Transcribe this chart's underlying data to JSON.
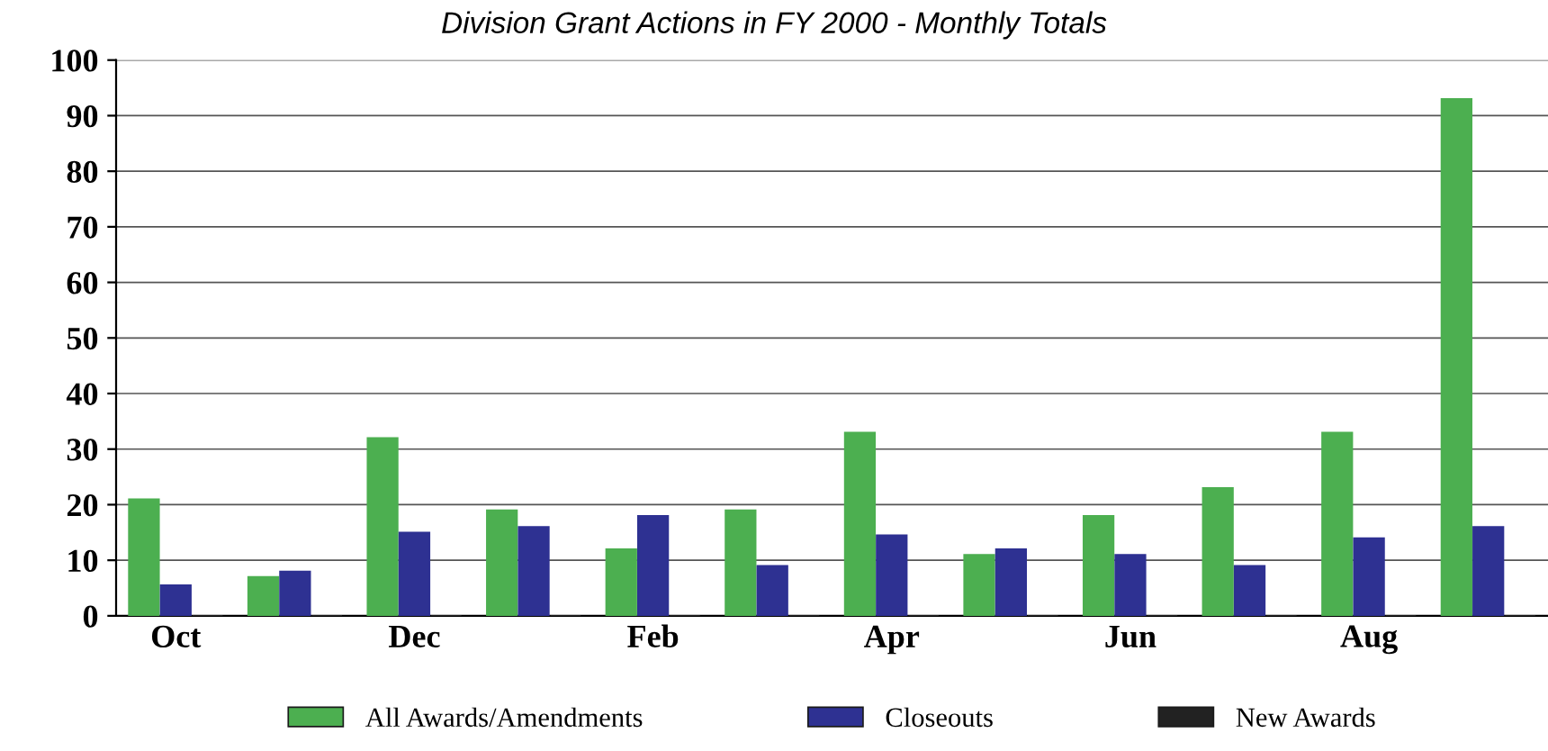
{
  "chart_data": {
    "type": "bar",
    "title": "Division Grant Actions in FY 2000 - Monthly Totals",
    "categories": [
      "Oct",
      null,
      "Dec",
      null,
      "Feb",
      null,
      "Apr",
      null,
      "Jun",
      null,
      "Aug",
      null
    ],
    "series": [
      {
        "name": "All Awards/Amendments",
        "color": "#4caf50",
        "values": [
          21,
          7,
          32,
          19,
          12,
          19,
          33,
          11,
          18,
          23,
          33,
          93
        ]
      },
      {
        "name": "Closeouts",
        "color": "#2e3192",
        "values": [
          5.5,
          8,
          15,
          16,
          18,
          9,
          14.5,
          12,
          11,
          9,
          14,
          16
        ]
      },
      {
        "name": "New Awards",
        "color": "#222222",
        "values": [
          0,
          0,
          0,
          0,
          0,
          0,
          0,
          0,
          0,
          0,
          0,
          0
        ]
      }
    ],
    "ylim": [
      0,
      100
    ],
    "yticks": [
      0,
      10,
      20,
      30,
      40,
      50,
      60,
      70,
      80,
      90,
      100
    ],
    "grid": "y",
    "legend": "bottom"
  }
}
